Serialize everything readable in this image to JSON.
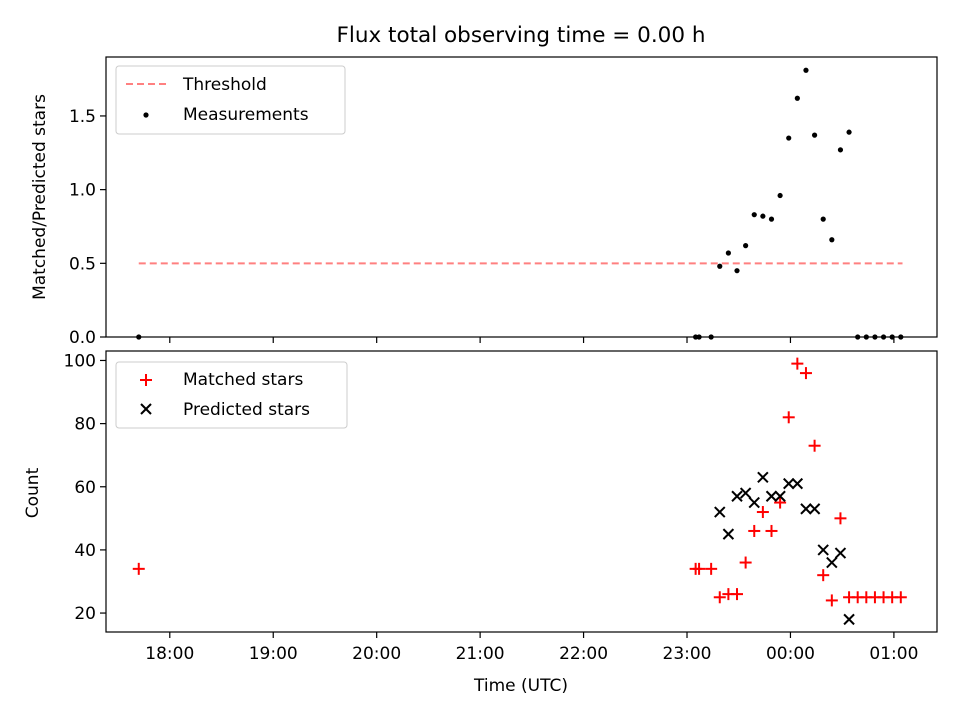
{
  "figure": {
    "title": "Flux total observing time = 0.00 h"
  },
  "chart_data": [
    {
      "type": "scatter",
      "panel": "top",
      "title": "Flux total observing time = 0.00 h",
      "xlabel": "",
      "ylabel": "Matched/Predicted stars",
      "xlim": [
        "17:23",
        "01:25"
      ],
      "ylim": [
        0,
        1.9
      ],
      "yticks": [
        0.0,
        0.5,
        1.0,
        1.5
      ],
      "ytick_labels": [
        "0.0",
        "0.5",
        "1.0",
        "1.5"
      ],
      "legend_position": "top-left",
      "legend": [
        {
          "label": "Threshold",
          "marker": "dashed-line",
          "color": "#ff8080"
        },
        {
          "label": "Measurements",
          "marker": "dot",
          "color": "#000000"
        }
      ],
      "series": [
        {
          "name": "Threshold",
          "kind": "line",
          "style": "dashed",
          "color": "#ff8080",
          "x": [
            "17:42",
            "01:05"
          ],
          "y": [
            0.5,
            0.5
          ]
        },
        {
          "name": "Measurements",
          "kind": "scatter",
          "color": "#000000",
          "x": [
            "17:42",
            "23:05",
            "23:07",
            "23:14",
            "23:19",
            "23:24",
            "23:29",
            "23:34",
            "23:39",
            "23:44",
            "23:49",
            "23:54",
            "23:59",
            "00:04",
            "00:09",
            "00:14",
            "00:19",
            "00:24",
            "00:29",
            "00:34",
            "00:39",
            "00:44",
            "00:49",
            "00:54",
            "00:59",
            "01:04"
          ],
          "y": [
            0.0,
            0.0,
            0.0,
            0.0,
            0.48,
            0.57,
            0.45,
            0.62,
            0.83,
            0.82,
            0.8,
            0.96,
            1.35,
            1.62,
            1.81,
            1.37,
            0.8,
            0.66,
            1.27,
            1.39,
            0.0,
            0.0,
            0.0,
            0.0,
            0.0,
            0.0
          ]
        }
      ]
    },
    {
      "type": "scatter",
      "panel": "bottom",
      "title": "",
      "xlabel": "Time (UTC)",
      "ylabel": "Count",
      "xlim": [
        "17:23",
        "01:25"
      ],
      "ylim": [
        14,
        103
      ],
      "xticks": [
        "18:00",
        "19:00",
        "20:00",
        "21:00",
        "22:00",
        "23:00",
        "00:00",
        "01:00"
      ],
      "yticks": [
        20,
        40,
        60,
        80,
        100
      ],
      "ytick_labels": [
        "20",
        "40",
        "60",
        "80",
        "100"
      ],
      "legend_position": "top-left",
      "legend": [
        {
          "label": "Matched stars",
          "marker": "plus",
          "color": "#ff0000"
        },
        {
          "label": "Predicted stars",
          "marker": "x",
          "color": "#000000"
        }
      ],
      "series": [
        {
          "name": "Matched stars",
          "kind": "scatter",
          "marker": "plus",
          "color": "#ff0000",
          "x": [
            "17:42",
            "23:05",
            "23:07",
            "23:14",
            "23:19",
            "23:24",
            "23:29",
            "23:34",
            "23:39",
            "23:44",
            "23:49",
            "23:54",
            "23:59",
            "00:04",
            "00:09",
            "00:14",
            "00:19",
            "00:24",
            "00:29",
            "00:34",
            "00:39",
            "00:44",
            "00:49",
            "00:54",
            "00:59",
            "01:04"
          ],
          "y": [
            34,
            34,
            34,
            34,
            25,
            26,
            26,
            36,
            46,
            52,
            46,
            55,
            82,
            99,
            96,
            73,
            32,
            24,
            50,
            25,
            25,
            25,
            25,
            25,
            25,
            25
          ]
        },
        {
          "name": "Predicted stars",
          "kind": "scatter",
          "marker": "x",
          "color": "#000000",
          "x": [
            "23:19",
            "23:24",
            "23:29",
            "23:34",
            "23:39",
            "23:44",
            "23:49",
            "23:54",
            "23:59",
            "00:04",
            "00:09",
            "00:14",
            "00:19",
            "00:24",
            "00:29",
            "00:34"
          ],
          "y": [
            52,
            45,
            57,
            58,
            55,
            63,
            57,
            57,
            61,
            61,
            53,
            53,
            40,
            36,
            39,
            18
          ]
        }
      ]
    }
  ]
}
